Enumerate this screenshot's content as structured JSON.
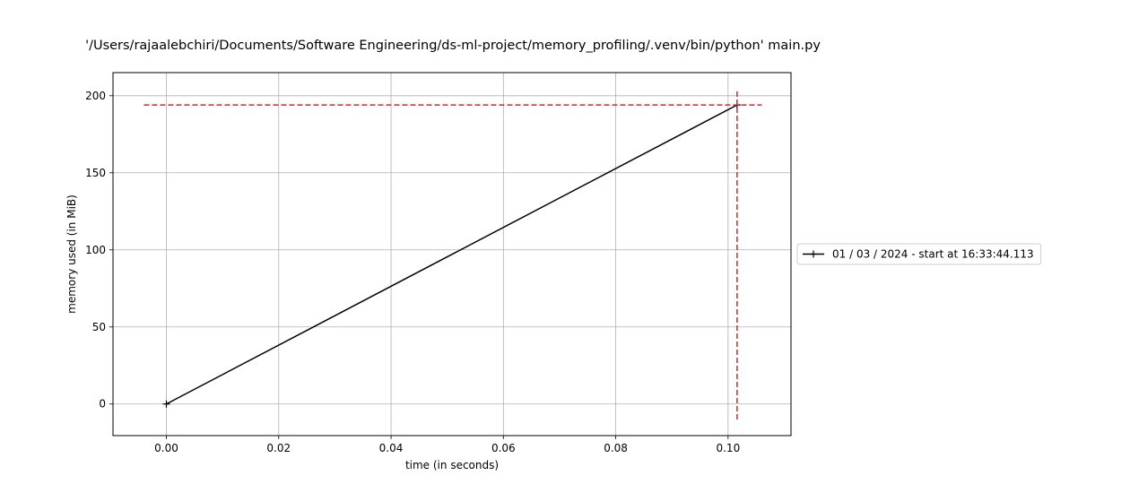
{
  "chart_data": {
    "type": "line",
    "title": "'/Users/rajaalebchiri/Documents/Software Engineering/ds-ml-project/memory_profiling/.venv/bin/python' main.py",
    "xlabel": "time (in seconds)",
    "ylabel": "memory used (in MiB)",
    "xlim": [
      -0.0095,
      0.1112
    ],
    "ylim": [
      -20.5,
      215
    ],
    "xticks": [
      0.0,
      0.02,
      0.04,
      0.06,
      0.08,
      0.1
    ],
    "xtick_labels": [
      "0.00",
      "0.02",
      "0.04",
      "0.06",
      "0.08",
      "0.10"
    ],
    "yticks": [
      0,
      50,
      100,
      150,
      200
    ],
    "ytick_labels": [
      "0",
      "50",
      "100",
      "150",
      "200"
    ],
    "grid": true,
    "legend_position": "outside-right",
    "series": [
      {
        "name": "01 / 03 / 2024 - start at 16:33:44.113",
        "color": "#000000",
        "marker": "+",
        "x": [
          0.0,
          0.1016
        ],
        "y": [
          0.0,
          194.0
        ]
      }
    ],
    "peak_lines": {
      "color": "#d62728",
      "style": "dashed",
      "horizontal": {
        "y": 194.0,
        "x_range": [
          -0.004,
          0.106
        ]
      },
      "vertical": {
        "x": 0.1016,
        "y_range": [
          -10,
          204
        ]
      }
    }
  }
}
